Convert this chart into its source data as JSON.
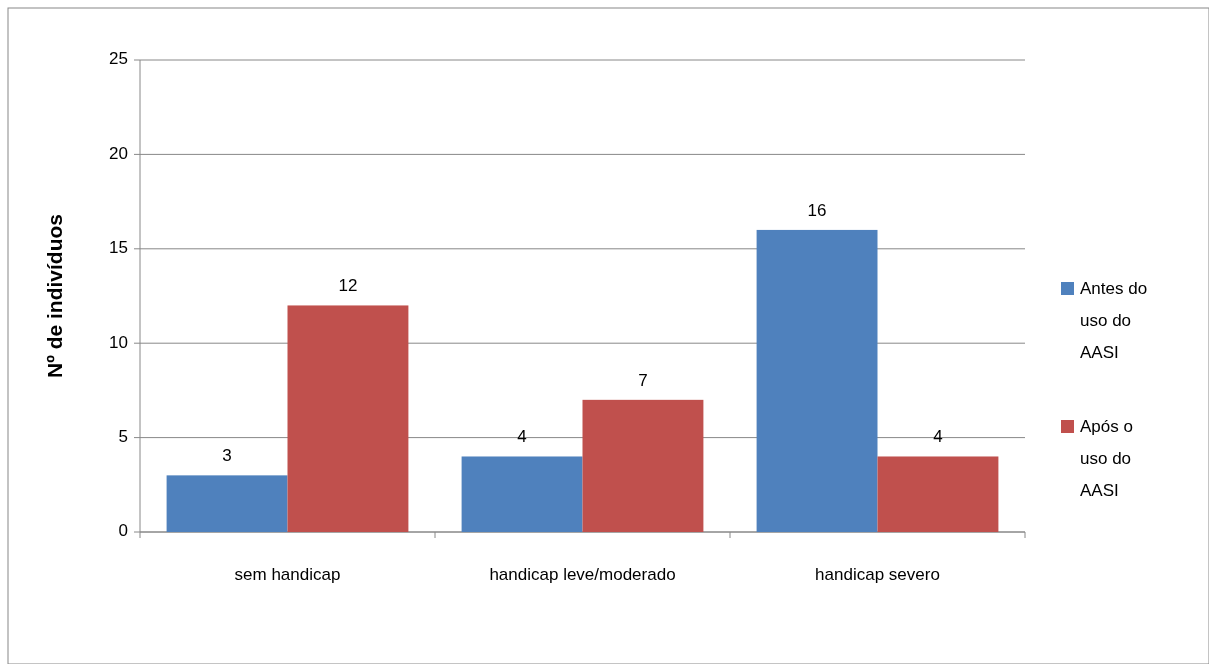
{
  "chart_data": {
    "type": "bar",
    "ylabel": "Nº de indivíduos",
    "categories": [
      "sem handicap",
      "handicap leve/moderado",
      "handicap severo"
    ],
    "series": [
      {
        "name": "Antes do uso do AASI",
        "color": "#4f81bd",
        "values": [
          3,
          4,
          16
        ]
      },
      {
        "name": "Após o uso do AASI",
        "color": "#c0504d",
        "values": [
          12,
          7,
          4
        ]
      }
    ],
    "ylim": [
      0,
      25
    ],
    "yticks": [
      0,
      5,
      10,
      15,
      20,
      25
    ],
    "grid": "y",
    "legend": "right",
    "data_labels": true
  }
}
